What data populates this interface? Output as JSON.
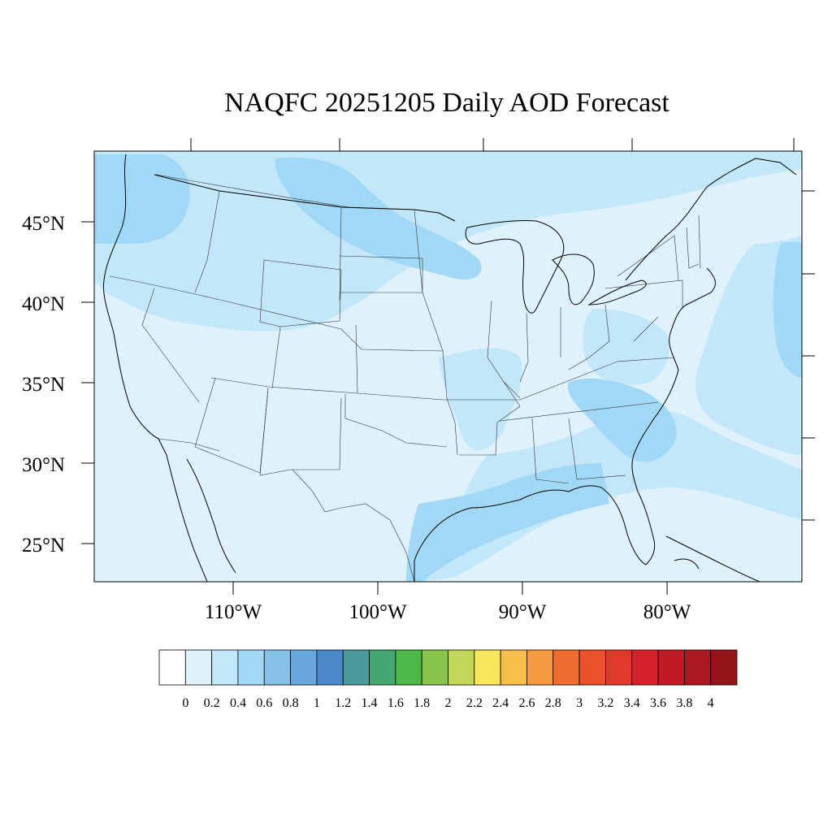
{
  "title": "NAQFC 20251205 Daily AOD Forecast",
  "axes": {
    "lat_labels": [
      "45°N",
      "40°N",
      "35°N",
      "30°N",
      "25°N"
    ],
    "lon_labels": [
      "110°W",
      "100°W",
      "90°W",
      "80°W"
    ]
  },
  "colorbar": {
    "tick_labels": [
      "0",
      "0.2",
      "0.4",
      "0.6",
      "0.8",
      "1",
      "1.2",
      "1.4",
      "1.6",
      "1.8",
      "2",
      "2.2",
      "2.4",
      "2.6",
      "2.8",
      "3",
      "3.2",
      "3.4",
      "3.6",
      "3.8",
      "4"
    ],
    "colors": [
      "#ffffff",
      "#dff2fc",
      "#c1e7f9",
      "#a1d8f5",
      "#86c1e8",
      "#68a8dd",
      "#4a88c9",
      "#4b9a9b",
      "#46a672",
      "#4db84a",
      "#86c44e",
      "#c3d659",
      "#f8e65c",
      "#f7be4c",
      "#f59a3e",
      "#f06b30",
      "#ea512c",
      "#e03a2a",
      "#d52129",
      "#c01b25",
      "#a9191f",
      "#931519"
    ]
  },
  "map_colors": {
    "background": "#dff2fc",
    "light": "#c1e7f9",
    "medium": "#a1d8f5",
    "coast": "#000000"
  }
}
